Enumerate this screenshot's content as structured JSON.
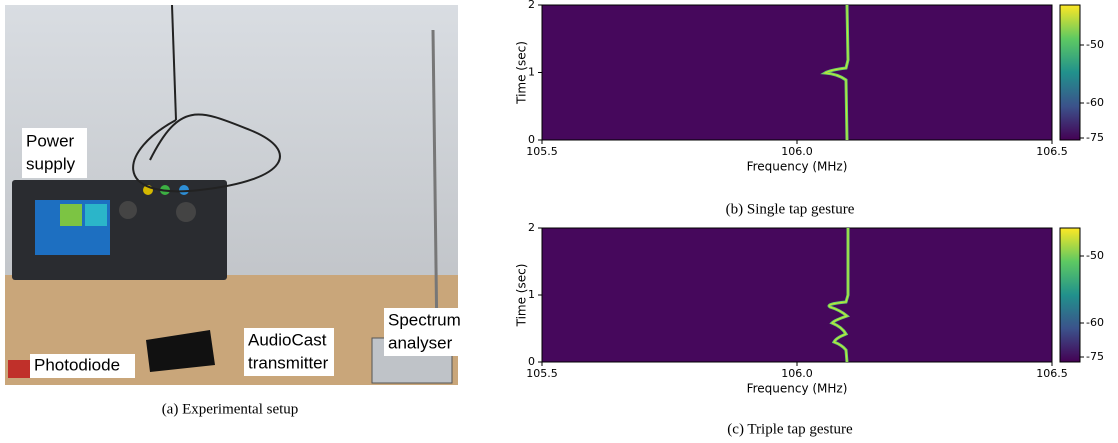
{
  "figure": {
    "panels": [
      {
        "caption": "(a) Experimental setup",
        "labels": [
          [
            "Power",
            "supply"
          ],
          [
            "Photodiode"
          ],
          [
            "AudioCast",
            "transmitter"
          ],
          [
            "Spectrum",
            "analyser"
          ]
        ]
      },
      {
        "caption": "(b) Single tap gesture",
        "x_label": "Frequency (MHz)",
        "y_label": "Time (sec)",
        "xticks": [
          "105.5",
          "106.0",
          "106.5"
        ],
        "yticks": [
          "0",
          "1",
          "2"
        ],
        "colorbar_ticks": [
          "-50",
          "-60",
          "-75"
        ]
      },
      {
        "caption": "(c) Triple tap gesture",
        "x_label": "Frequency (MHz)",
        "y_label": "Time (sec)",
        "xticks": [
          "105.5",
          "106.0",
          "106.5"
        ],
        "yticks": [
          "0",
          "1",
          "2"
        ],
        "colorbar_ticks": [
          "-50",
          "-60",
          "-75"
        ]
      }
    ]
  }
}
